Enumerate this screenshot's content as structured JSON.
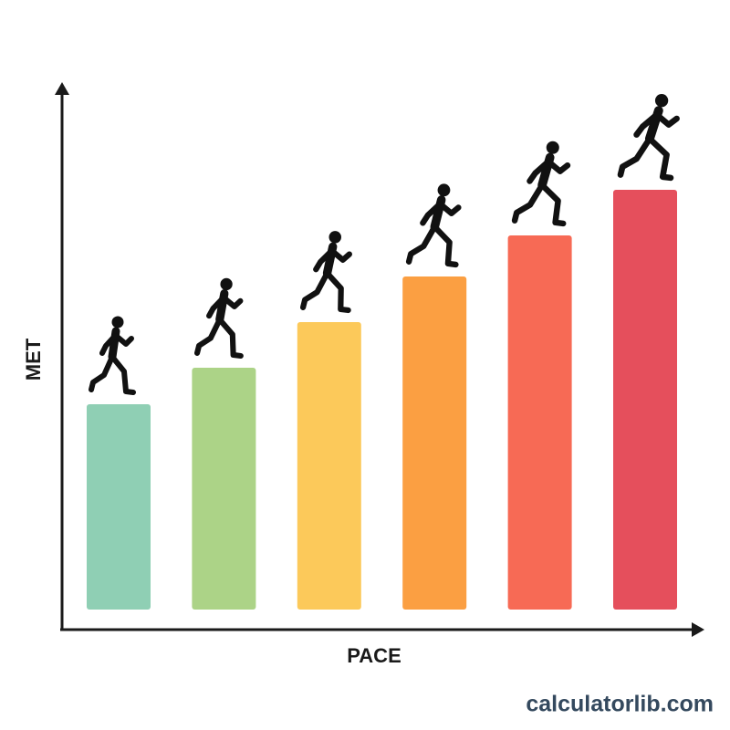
{
  "chart_data": {
    "type": "bar",
    "x_label": "PACE",
    "y_label": "MET",
    "categories": [
      null,
      null,
      null,
      null,
      null,
      null
    ],
    "values": [
      4.5,
      5.3,
      6.3,
      7.3,
      8.2,
      9.2
    ],
    "colors": [
      "#8fcfb4",
      "#acd387",
      "#fcc95a",
      "#fb9f42",
      "#f76a55",
      "#e54f5c"
    ],
    "ylim": [
      0,
      12
    ]
  },
  "footer": {
    "site": "calculatorlib.com"
  }
}
